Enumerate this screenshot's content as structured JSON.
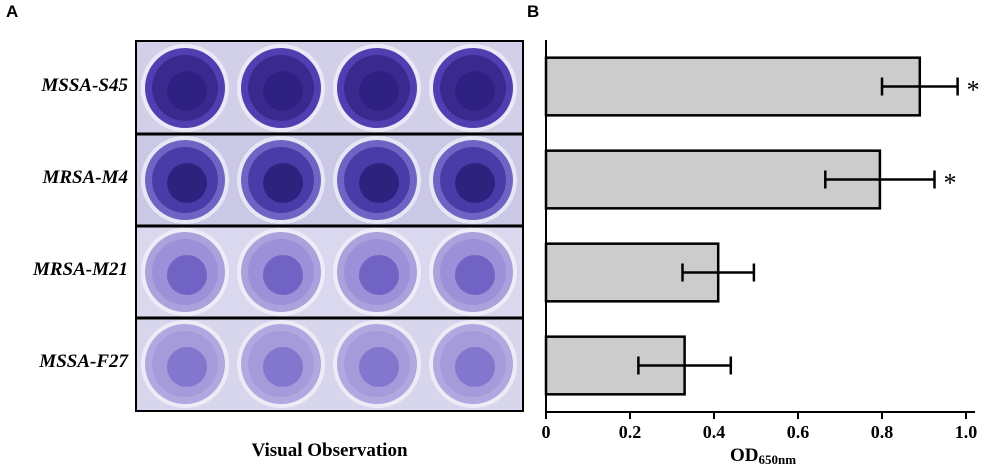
{
  "panel_a": {
    "letter": "A",
    "caption": "Visual Observation",
    "rows": [
      "MSSA-S45",
      "MRSA-M4",
      "MRSA-M21",
      "MSSA-F27"
    ],
    "colors": {
      "dark_purple": "#3a2a90",
      "medium_purple": "#6a5cc0",
      "light_purple": "#9c90d8",
      "plate_bg": "#c8c4e4"
    }
  },
  "chart_data": {
    "type": "bar",
    "orientation": "horizontal",
    "panel_letter": "B",
    "categories": [
      "MSSA-S45",
      "MRSA-M4",
      "MRSA-M21",
      "MSSA-F27"
    ],
    "values": [
      0.89,
      0.795,
      0.41,
      0.33
    ],
    "errors": [
      0.09,
      0.13,
      0.085,
      0.11
    ],
    "significance": [
      "*",
      "*",
      "",
      ""
    ],
    "xlabel": "OD",
    "xlabel_sub": "650nm",
    "ylabel": "",
    "xlim": [
      0,
      1.0
    ],
    "xticks": [
      "0",
      "0.2",
      "0.4",
      "0.6",
      "0.8",
      "1.0"
    ],
    "bar_color": "#cccccc",
    "grid": false
  }
}
